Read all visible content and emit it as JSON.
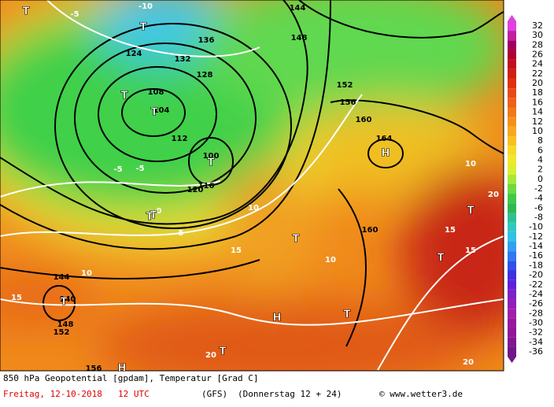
{
  "footer": {
    "line1": "850 hPa Geopotential [gpdam], Temperatur [Grad C]",
    "date": "Freitag, 12-10-2018",
    "time": "12 UTC",
    "model": "(GFS)",
    "run": "(Donnerstag 12 + 24)",
    "source": "© www.wetter3.de"
  },
  "colorbar": [
    "32",
    "30",
    "28",
    "26",
    "24",
    "22",
    "20",
    "18",
    "16",
    "14",
    "12",
    "10",
    "8",
    "6",
    "4",
    "2",
    "0",
    "-2",
    "-4",
    "-6",
    "-8",
    "-10",
    "-12",
    "-14",
    "-16",
    "-18",
    "-20",
    "-22",
    "-24",
    "-26",
    "-28",
    "-30",
    "-32",
    "-34",
    "-36"
  ],
  "map_labels": [
    "T",
    "-5",
    "-10",
    "144",
    "T",
    "124",
    "128",
    "132",
    "136",
    "T",
    "108",
    "104",
    "T",
    "100",
    "T",
    "112",
    "120",
    "116",
    "-5",
    "0",
    "T",
    "148",
    "152",
    "156",
    "160",
    "164",
    "H",
    "10",
    "15",
    "T",
    "10",
    "140",
    "144",
    "T",
    "148",
    "152",
    "15",
    "H",
    "T",
    "20",
    "156",
    "H",
    "T",
    "15",
    "10",
    "20",
    "T",
    "-5",
    "5",
    "10",
    "T",
    "T",
    "160",
    "15",
    "20"
  ]
}
